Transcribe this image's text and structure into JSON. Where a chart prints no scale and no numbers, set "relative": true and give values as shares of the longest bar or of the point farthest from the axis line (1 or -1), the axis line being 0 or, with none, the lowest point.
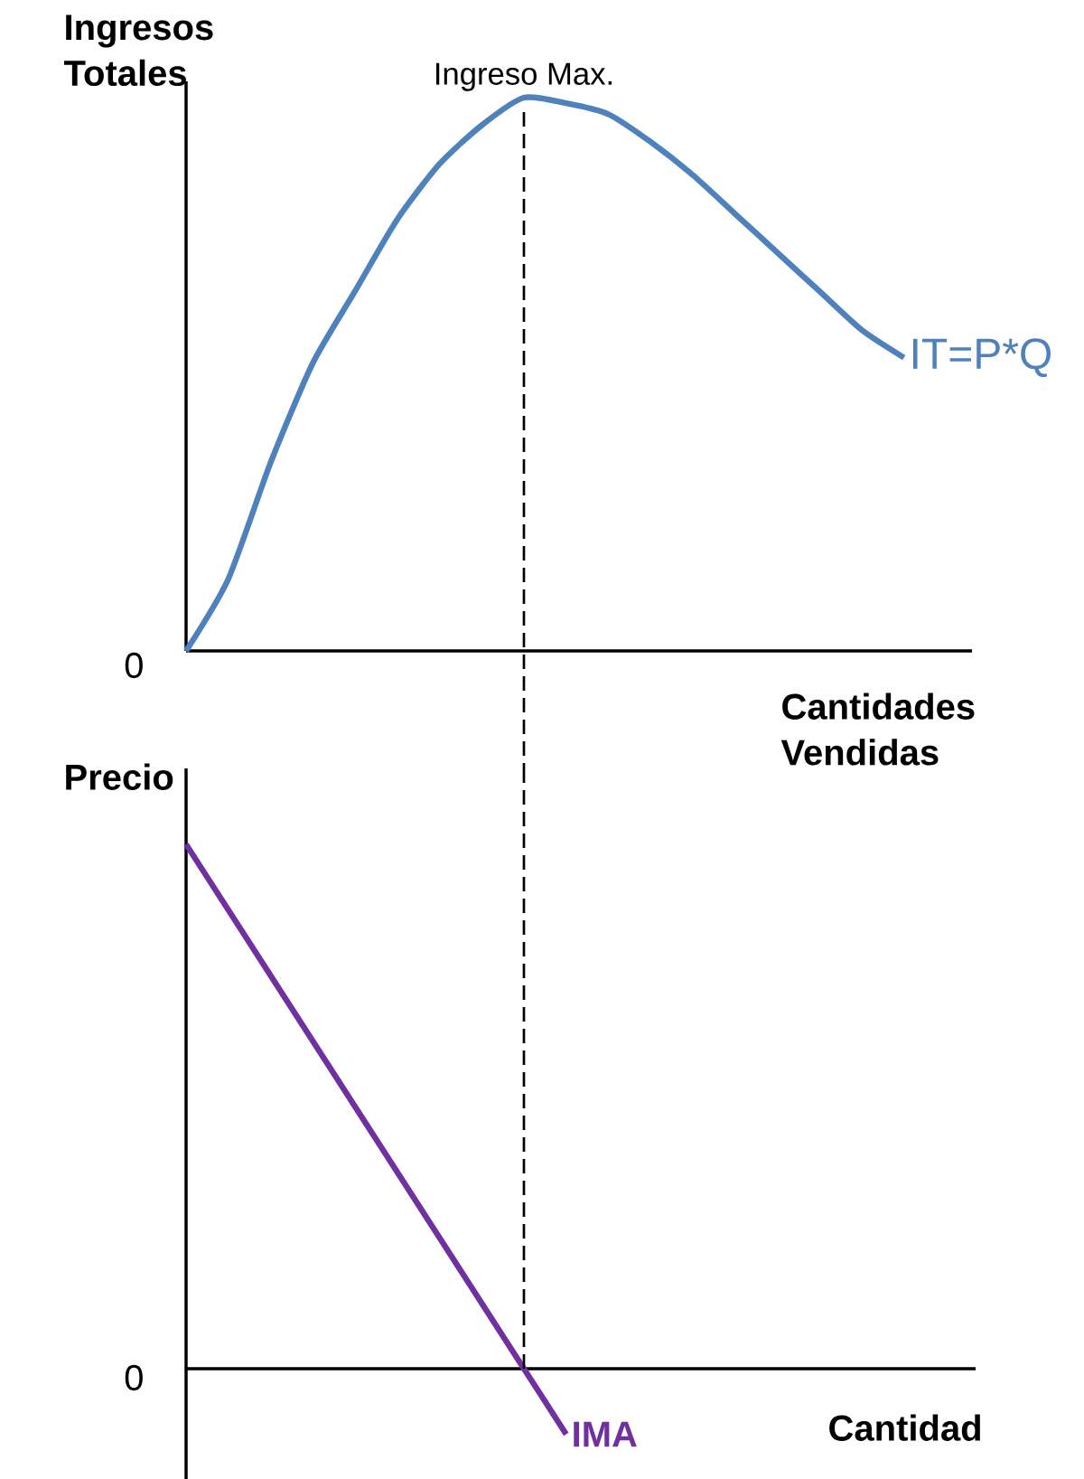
{
  "chart_data": [
    {
      "type": "line",
      "relative": true,
      "ylabel": "Ingresos Totales",
      "xlabel": "Cantidades Vendidas",
      "categories": [
        null,
        null,
        null,
        null,
        null,
        null,
        null,
        null,
        null,
        null,
        null,
        null,
        null,
        null,
        null,
        null,
        null,
        null,
        null
      ],
      "series": [
        {
          "name": "IT=P*Q",
          "color": "#4f81bd",
          "values": [
            0,
            0.13,
            0.34,
            0.52,
            0.65,
            0.78,
            0.88,
            0.95,
            1.0,
            0.99,
            0.97,
            0.92,
            0.86,
            0.79,
            0.72,
            0.65,
            0.58,
            0.53,
            null
          ]
        }
      ],
      "annotations": [
        "Ingreso Max.",
        "0"
      ]
    },
    {
      "type": "line",
      "relative": true,
      "ylabel": "Precio",
      "xlabel": "Cantidad",
      "categories": [
        null,
        null,
        null,
        null,
        null,
        null,
        null,
        null,
        null,
        null,
        null,
        null,
        null,
        null,
        null,
        null,
        null,
        null,
        null
      ],
      "series": [
        {
          "name": "IMA",
          "color": "#7030a0",
          "values": [
            1,
            0.875,
            0.75,
            0.625,
            0.5,
            0.375,
            0.25,
            0.125,
            0,
            -0.125,
            null,
            null,
            null,
            null,
            null,
            null,
            null,
            null,
            null
          ]
        }
      ],
      "annotations": [
        "0"
      ]
    }
  ]
}
